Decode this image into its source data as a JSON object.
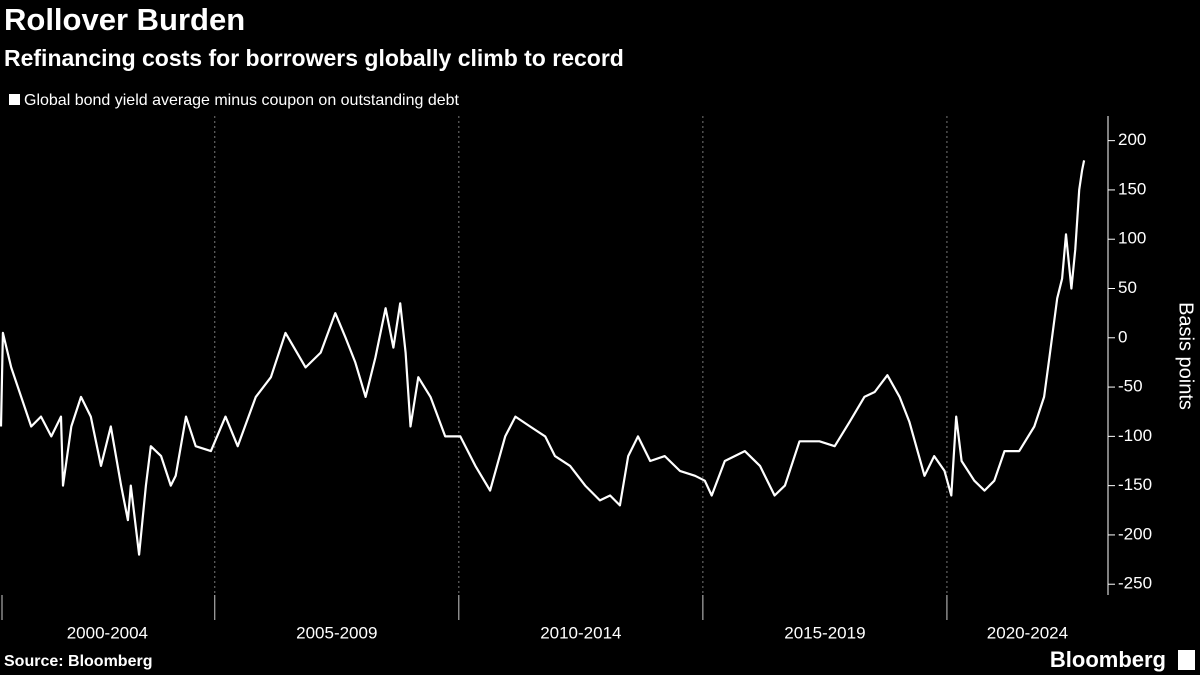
{
  "chart_data": {
    "type": "line",
    "title": "Rollover Burden",
    "subtitle": "Refinancing costs for borrowers globally climb to record",
    "y_axis_label": "Basis points",
    "source": "Source: Bloomberg",
    "brand": "Bloomberg",
    "x": [
      2000.62,
      2000.66,
      2000.83,
      2001.24,
      2001.44,
      2001.65,
      2001.85,
      2001.89,
      2002.06,
      2002.26,
      2002.46,
      2002.67,
      2002.87,
      2003.08,
      2003.22,
      2003.28,
      2003.45,
      2003.59,
      2003.69,
      2003.9,
      2004.1,
      2004.2,
      2004.41,
      2004.61,
      2004.92,
      2005.22,
      2005.47,
      2005.84,
      2006.15,
      2006.45,
      2006.86,
      2007.17,
      2007.47,
      2007.68,
      2007.88,
      2008.09,
      2008.29,
      2008.5,
      2008.66,
      2008.8,
      2008.91,
      2009.01,
      2009.17,
      2009.42,
      2009.72,
      2010.03,
      2010.34,
      2010.64,
      2010.95,
      2011.16,
      2011.46,
      2011.77,
      2011.97,
      2012.28,
      2012.59,
      2012.89,
      2013.1,
      2013.3,
      2013.47,
      2013.67,
      2013.92,
      2014.22,
      2014.53,
      2014.84,
      2015.04,
      2015.18,
      2015.45,
      2015.86,
      2016.17,
      2016.47,
      2016.68,
      2016.98,
      2017.39,
      2017.7,
      2018.01,
      2018.31,
      2018.52,
      2018.78,
      2019.03,
      2019.23,
      2019.54,
      2019.74,
      2019.95,
      2020.09,
      2020.19,
      2020.3,
      2020.56,
      2020.77,
      2020.97,
      2021.18,
      2021.48,
      2021.79,
      2021.99,
      2022.1,
      2022.26,
      2022.36,
      2022.44,
      2022.55,
      2022.63,
      2022.71,
      2022.77,
      2022.81
    ],
    "series": [
      {
        "name": "Global bond yield average minus coupon on outstanding debt",
        "color": "#ffffff",
        "values": [
          -90,
          5,
          -30,
          -90,
          -80,
          -100,
          -80,
          -150,
          -90,
          -60,
          -80,
          -130,
          -90,
          -150,
          -185,
          -150,
          -220,
          -150,
          -110,
          -120,
          -150,
          -140,
          -80,
          -110,
          -115,
          -80,
          -110,
          -60,
          -40,
          5,
          -30,
          -15,
          25,
          0,
          -25,
          -60,
          -20,
          30,
          -10,
          35,
          -15,
          -90,
          -40,
          -60,
          -100,
          -100,
          -130,
          -155,
          -100,
          -80,
          -90,
          -100,
          -120,
          -130,
          -150,
          -165,
          -160,
          -170,
          -120,
          -100,
          -125,
          -120,
          -135,
          -140,
          -145,
          -160,
          -125,
          -115,
          -130,
          -160,
          -150,
          -105,
          -105,
          -110,
          -85,
          -60,
          -55,
          -38,
          -60,
          -85,
          -140,
          -120,
          -135,
          -160,
          -80,
          -125,
          -145,
          -155,
          -145,
          -115,
          -115,
          -90,
          -60,
          -20,
          40,
          60,
          105,
          50,
          90,
          150,
          170,
          180
        ]
      }
    ],
    "xlim": [
      2000.6,
      2023.3
    ],
    "x_bands": [
      {
        "label": "2000-2004",
        "start": 2000,
        "end": 2005
      },
      {
        "label": "2005-2009",
        "start": 2005,
        "end": 2010
      },
      {
        "label": "2010-2014",
        "start": 2010,
        "end": 2015
      },
      {
        "label": "2015-2019",
        "start": 2015,
        "end": 2020
      },
      {
        "label": "2020-2024",
        "start": 2020,
        "end": 2025
      }
    ],
    "ylim": [
      -265,
      225
    ],
    "yticks": [
      200,
      150,
      100,
      50,
      0,
      -50,
      -100,
      -150,
      -200,
      -250
    ],
    "y_axis_side": "right",
    "background": "#000000"
  }
}
